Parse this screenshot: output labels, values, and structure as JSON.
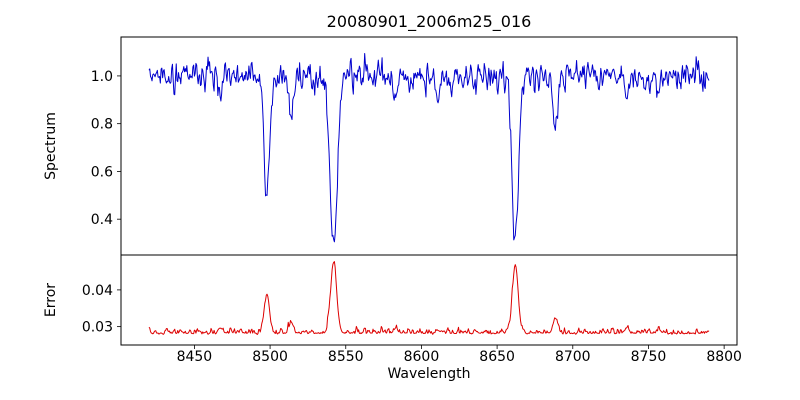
{
  "chart_data": {
    "type": "line",
    "title": "20080901_2006m25_016",
    "xlabel": "Wavelength",
    "grid": false,
    "legend": false,
    "xlim": [
      8401.5,
      8808.5
    ],
    "xticks": [
      8450,
      8500,
      8550,
      8600,
      8650,
      8700,
      8750,
      8800
    ],
    "xtick_labels": [
      "8450",
      "8500",
      "8550",
      "8600",
      "8650",
      "8700",
      "8750",
      "8800"
    ],
    "x_data_range": [
      8420,
      8790
    ],
    "x_step": 0.5,
    "noise_seed": 20080901,
    "panels": [
      {
        "name": "spectrum",
        "ylabel": "Spectrum",
        "ylim": [
          0.25,
          1.163
        ],
        "yticks": [
          0.4,
          0.6,
          0.8,
          1.0
        ],
        "ytick_labels": [
          "0.4",
          "0.6",
          "0.8",
          "1.0"
        ],
        "color": "#0000cd",
        "continuum": 1.0,
        "noise_sigma": 0.031,
        "absorption_lines": [
          {
            "center": 8467.5,
            "depth": 0.1,
            "width": 1.3
          },
          {
            "center": 8498.0,
            "depth": 0.52,
            "width": 1.8
          },
          {
            "center": 8514.0,
            "depth": 0.2,
            "width": 1.4
          },
          {
            "center": 8542.0,
            "depth": 0.71,
            "width": 2.4
          },
          {
            "center": 8583.0,
            "depth": 0.1,
            "width": 1.3
          },
          {
            "center": 8611.0,
            "depth": 0.08,
            "width": 1.2
          },
          {
            "center": 8662.0,
            "depth": 0.7,
            "width": 2.2
          },
          {
            "center": 8688.5,
            "depth": 0.24,
            "width": 1.5
          },
          {
            "center": 8736.0,
            "depth": 0.09,
            "width": 1.3
          },
          {
            "center": 8757.0,
            "depth": 0.07,
            "width": 1.2
          }
        ]
      },
      {
        "name": "error",
        "ylabel": "Error",
        "ylim": [
          0.025,
          0.0495
        ],
        "yticks": [
          0.03,
          0.04
        ],
        "ytick_labels": [
          "0.03",
          "0.04"
        ],
        "color": "#dd0000",
        "baseline": 0.0283,
        "noise_sigma": 0.0004,
        "peaks": [
          {
            "center": 8467.5,
            "height": 0.0014,
            "width": 1.3
          },
          {
            "center": 8498.0,
            "height": 0.0105,
            "width": 1.6
          },
          {
            "center": 8514.0,
            "height": 0.003,
            "width": 1.4
          },
          {
            "center": 8542.0,
            "height": 0.0192,
            "width": 2.0
          },
          {
            "center": 8583.0,
            "height": 0.0015,
            "width": 1.3
          },
          {
            "center": 8611.0,
            "height": 0.001,
            "width": 1.2
          },
          {
            "center": 8662.0,
            "height": 0.0188,
            "width": 1.9
          },
          {
            "center": 8688.5,
            "height": 0.004,
            "width": 1.5
          },
          {
            "center": 8736.0,
            "height": 0.0014,
            "width": 1.3
          },
          {
            "center": 8757.0,
            "height": 0.001,
            "width": 1.2
          }
        ]
      }
    ]
  }
}
